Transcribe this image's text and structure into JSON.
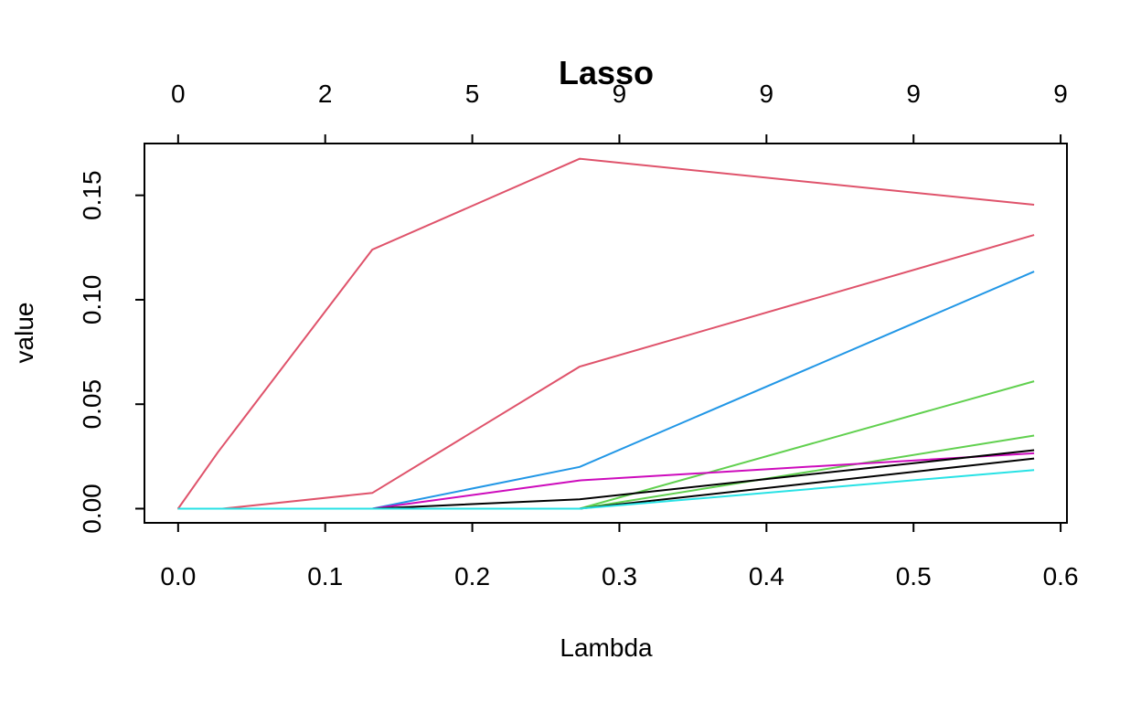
{
  "chart_data": {
    "type": "line",
    "title": "Lasso",
    "xlabel": "Lambda",
    "ylabel": "value",
    "xlim": [
      -0.0229,
      0.6043
    ],
    "ylim": [
      -0.0068,
      0.1748
    ],
    "x_ticks": [
      "0.0",
      "0.1",
      "0.2",
      "0.3",
      "0.4",
      "0.5",
      "0.6"
    ],
    "x_tick_values": [
      0.0,
      0.1,
      0.2,
      0.3,
      0.4,
      0.5,
      0.6
    ],
    "y_ticks": [
      "0.00",
      "0.05",
      "0.10",
      "0.15"
    ],
    "y_tick_values": [
      0.0,
      0.05,
      0.1,
      0.15
    ],
    "top_axis_ticks": [
      "0",
      "2",
      "5",
      "9",
      "9",
      "9",
      "9"
    ],
    "top_axis_tick_values": [
      0.0,
      0.1,
      0.2,
      0.3,
      0.4,
      0.5,
      0.6
    ],
    "grid": false,
    "legend": "none",
    "series": [
      {
        "color": "#DF536B",
        "points": [
          [
            0.0,
            0.0
          ],
          [
            0.027,
            0.027
          ],
          [
            0.132,
            0.124
          ],
          [
            0.273,
            0.1675
          ],
          [
            0.582,
            0.1455
          ]
        ]
      },
      {
        "color": "#DF536B",
        "points": [
          [
            0.0,
            0.0
          ],
          [
            0.03,
            0.0
          ],
          [
            0.132,
            0.0075
          ],
          [
            0.273,
            0.068
          ],
          [
            0.582,
            0.131
          ]
        ]
      },
      {
        "color": "#2297E6",
        "points": [
          [
            0.0,
            0.0
          ],
          [
            0.132,
            0.0
          ],
          [
            0.273,
            0.02
          ],
          [
            0.582,
            0.1135
          ]
        ]
      },
      {
        "color": "#61D04F",
        "points": [
          [
            0.0,
            0.0
          ],
          [
            0.273,
            0.0
          ],
          [
            0.582,
            0.061
          ]
        ]
      },
      {
        "color": "#61D04F",
        "points": [
          [
            0.0,
            0.0
          ],
          [
            0.273,
            0.0
          ],
          [
            0.582,
            0.035
          ]
        ]
      },
      {
        "color": "#CD0BBC",
        "points": [
          [
            0.0,
            0.0
          ],
          [
            0.132,
            0.0
          ],
          [
            0.273,
            0.0135
          ],
          [
            0.582,
            0.0265
          ]
        ]
      },
      {
        "color": "#000000",
        "points": [
          [
            0.0,
            0.0
          ],
          [
            0.132,
            0.0
          ],
          [
            0.273,
            0.0045
          ],
          [
            0.582,
            0.028
          ]
        ]
      },
      {
        "color": "#000000",
        "points": [
          [
            0.0,
            0.0
          ],
          [
            0.273,
            0.0
          ],
          [
            0.582,
            0.024
          ]
        ]
      },
      {
        "color": "#28E2E5",
        "points": [
          [
            0.0,
            0.0
          ],
          [
            0.273,
            0.0
          ],
          [
            0.582,
            0.0185
          ]
        ]
      }
    ]
  }
}
